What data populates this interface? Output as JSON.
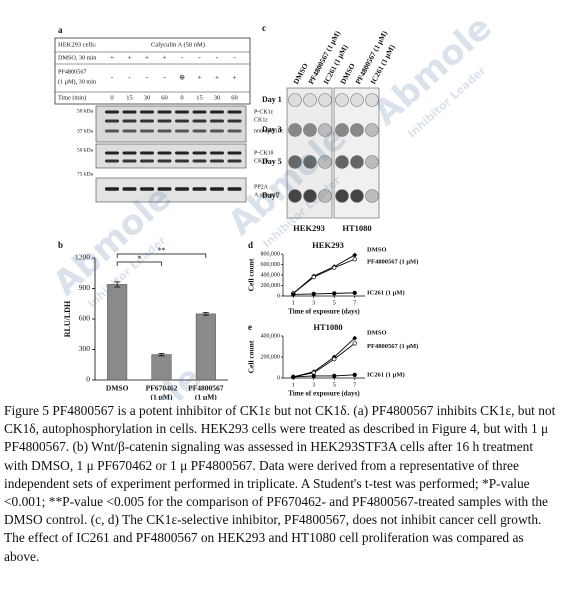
{
  "watermark": {
    "brand": "Abmole",
    "tagline": "Inhibitor Leader"
  },
  "panel_a": {
    "label": "a",
    "cells_label": "HEK293 cells:",
    "treatment": "Calyculin A (50 nM)",
    "rows": [
      {
        "label": "DMSO, 30 min",
        "cells": [
          "+",
          "+",
          "+",
          "+",
          "-",
          "-",
          "-",
          "-"
        ]
      },
      {
        "label": [
          "PF4800567",
          "(1 μM), 30 min"
        ],
        "cells": [
          "-",
          "-",
          "-",
          "-",
          "⊕",
          "+",
          "+",
          "+"
        ]
      }
    ],
    "time_label": "Time (min)",
    "times": [
      "0",
      "15",
      "30",
      "60",
      "0",
      "15",
      "30",
      "60"
    ],
    "mw": [
      "50 kDa",
      "37 kDa",
      "50 kDa",
      "75 kDa"
    ],
    "bands": [
      "P-CK1ε",
      "CK1ε",
      "non-specific",
      "P-CK1δ",
      "CK1δ",
      "PP2A",
      "A subunit"
    ]
  },
  "panel_c": {
    "label": "c",
    "columns": [
      "DMSO",
      "PF4800567 (1 μM)",
      "IC261 (1 μM)",
      "DMSO",
      "PF4800567 (1 μM)",
      "IC261 (1 μM)"
    ],
    "days": [
      "Day 1",
      "Day 3",
      "Day 5",
      "Day7"
    ],
    "cell_lines": [
      "HEK293",
      "HT1080"
    ]
  },
  "chart_data": [
    {
      "type": "bar",
      "label": "b",
      "ylabel": "RLU/LDH",
      "categories": [
        [
          "DMSO"
        ],
        [
          "PF670462",
          "(1 μM)"
        ],
        [
          "PF4800567",
          "(1 μM)"
        ]
      ],
      "values": [
        940,
        250,
        650
      ],
      "errors": [
        25,
        12,
        12
      ],
      "color": "#8a8a8a",
      "ylim": [
        0,
        1200
      ],
      "yticks": [
        0,
        300,
        600,
        900,
        1200
      ],
      "annotations": [
        "*",
        "**"
      ]
    },
    {
      "type": "line",
      "label": "d",
      "title": "HEK293",
      "ylabel": "Cell count",
      "xlabel": "Time of exposure (days)",
      "x": [
        1,
        3,
        5,
        7
      ],
      "xlim": [
        0,
        8
      ],
      "xticks": [
        1,
        3,
        5,
        7
      ],
      "ylim": [
        0,
        800000
      ],
      "yticks": [
        0,
        {
          "value": 200000,
          "label": "200,000"
        },
        {
          "value": 400000,
          "label": "400,000"
        },
        {
          "value": 600000,
          "label": "600,000"
        },
        {
          "value": 800000,
          "label": "800,000"
        }
      ],
      "series": [
        {
          "name": "DMSO",
          "color": "#000000",
          "values": [
            50000,
            380000,
            560000,
            780000
          ]
        },
        {
          "name": "PF4800567 (1 μM)",
          "color": "#000000",
          "values": [
            50000,
            360000,
            540000,
            700000
          ]
        },
        {
          "name": "IC261 (1 μM)",
          "color": "#000000",
          "values": [
            30000,
            40000,
            50000,
            60000
          ]
        }
      ]
    },
    {
      "type": "line",
      "label": "e",
      "title": "HT1080",
      "ylabel": "Cell count",
      "xlabel": "Time of exposure (days)",
      "x": [
        1,
        3,
        5,
        7
      ],
      "xlim": [
        0,
        8
      ],
      "xticks": [
        1,
        3,
        5,
        7
      ],
      "ylim": [
        0,
        400000
      ],
      "yticks": [
        0,
        {
          "value": 200000,
          "label": "200,000"
        },
        {
          "value": 400000,
          "label": "400,000"
        }
      ],
      "series": [
        {
          "name": "DMSO",
          "color": "#000000",
          "values": [
            10000,
            60000,
            200000,
            380000
          ]
        },
        {
          "name": "PF4800567 (1 μM)",
          "color": "#000000",
          "values": [
            10000,
            50000,
            180000,
            330000
          ]
        },
        {
          "name": "IC261 (1 μM)",
          "color": "#000000",
          "values": [
            10000,
            20000,
            20000,
            30000
          ]
        }
      ]
    }
  ],
  "caption": "Figure 5 PF4800567 is a potent inhibitor of CK1ε but not CK1δ. (a) PF4800567 inhibits CK1ε, but not CK1δ, autophosphorylation in cells. HEK293 cells were treated as described in Figure 4, but with 1 μ PF4800567. (b) Wnt/β-catenin signaling was assessed in HEK293STF3A cells after 16 h treatment with DMSO, 1 μ PF670462 or 1 μ PF4800567. Data were derived from a representative of three independent sets of experiment performed in triplicate. A Student's t-test was performed; *P-value <0.001; **P-value <0.005 for the comparison of PF670462- and PF4800567-treated samples with the DMSO control. (c, d) The CK1ε-selective inhibitor, PF4800567, does not inhibit cancer cell growth. The effect of IC261 and PF4800567 on HEK293 and HT1080 cell proliferation was compared as above."
}
